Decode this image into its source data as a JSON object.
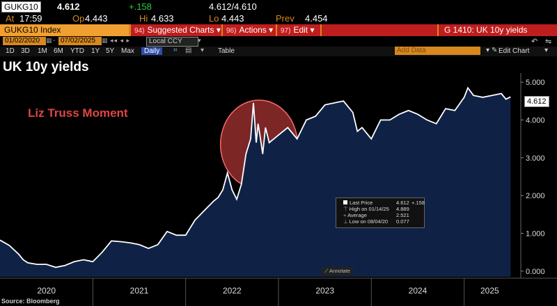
{
  "quote": {
    "ticker": "GUKG10",
    "last": "4.612",
    "change": "+.158",
    "bid_ask": "4.612/4.610",
    "time_label": "At",
    "time": "17:59",
    "open_label": "Op",
    "open": "4.443",
    "high_label": "Hi",
    "high": "4.633",
    "low_label": "Lo",
    "low": "4.443",
    "prev_label": "Prev",
    "prev": "4.454"
  },
  "menu": {
    "index": "GUKG10 Index",
    "suggested_num": "94)",
    "suggested": "Suggested Charts",
    "actions_num": "96)",
    "actions": "Actions",
    "edit_num": "97)",
    "edit": "Edit",
    "title": "G 1410: UK 10y yields"
  },
  "dates": {
    "start": "01/02/2020",
    "end": "07/02/2025",
    "currency": "Local CCY",
    "add_data": "Add Data"
  },
  "periods": [
    "1D",
    "3D",
    "1M",
    "6M",
    "YTD",
    "1Y",
    "5Y",
    "Max"
  ],
  "frequency": "Daily",
  "table_label": "Table",
  "edit_chart": "Edit Chart",
  "footer": "Source: Bloomberg",
  "annotate_label": "Annotate",
  "legend": {
    "last_label": "Last Price",
    "last_value": "4.612",
    "last_change": "+.158",
    "high_label": "High on 01/14/25",
    "high_value": "4.889",
    "avg_label": "Average",
    "avg_value": "2.521",
    "low_label": "Low on 08/04/20",
    "low_value": "0.077"
  },
  "colors": {
    "line": "#ffffff",
    "area": "#0f2246",
    "annotation": "#e04545",
    "bar_orange": "#d7881f",
    "bar_red": "#bf1e1e"
  },
  "chart_data": {
    "type": "area",
    "title": "UK 10y yields",
    "annotation": "Liz Truss Moment",
    "x": [
      2020.0,
      2020.1,
      2020.2,
      2020.25,
      2020.3,
      2020.4,
      2020.5,
      2020.6,
      2020.7,
      2020.8,
      2020.9,
      2021.0,
      2021.1,
      2021.2,
      2021.3,
      2021.4,
      2021.5,
      2021.6,
      2021.7,
      2021.8,
      2021.9,
      2022.0,
      2022.1,
      2022.2,
      2022.3,
      2022.35,
      2022.4,
      2022.45,
      2022.5,
      2022.55,
      2022.6,
      2022.65,
      2022.7,
      2022.73,
      2022.76,
      2022.78,
      2022.8,
      2022.83,
      2022.86,
      2022.9,
      2022.95,
      2023.0,
      2023.1,
      2023.2,
      2023.3,
      2023.4,
      2023.5,
      2023.6,
      2023.7,
      2023.8,
      2023.85,
      2023.9,
      2024.0,
      2024.1,
      2024.2,
      2024.3,
      2024.4,
      2024.5,
      2024.6,
      2024.7,
      2024.8,
      2024.9,
      2025.0,
      2025.04,
      2025.1,
      2025.2,
      2025.3,
      2025.4,
      2025.45,
      2025.5
    ],
    "values": [
      0.82,
      0.68,
      0.45,
      0.3,
      0.22,
      0.18,
      0.18,
      0.1,
      0.15,
      0.25,
      0.3,
      0.25,
      0.5,
      0.8,
      0.78,
      0.75,
      0.7,
      0.6,
      0.7,
      1.05,
      0.95,
      0.95,
      1.35,
      1.6,
      1.85,
      1.95,
      2.15,
      2.6,
      2.15,
      1.9,
      2.3,
      3.1,
      3.5,
      4.45,
      3.4,
      3.9,
      3.6,
      3.1,
      3.8,
      3.4,
      3.5,
      3.6,
      3.8,
      3.5,
      4.0,
      4.1,
      4.4,
      4.45,
      4.5,
      4.2,
      3.7,
      3.8,
      3.5,
      4.0,
      4.0,
      4.15,
      4.25,
      4.15,
      4.0,
      3.9,
      4.3,
      4.25,
      4.6,
      4.85,
      4.65,
      4.6,
      4.65,
      4.7,
      4.55,
      4.61
    ],
    "xticks": [
      "2020",
      "2021",
      "2022",
      "2023",
      "2024",
      "2025"
    ],
    "yticks": [
      "0.000",
      "1.000",
      "2.000",
      "3.000",
      "4.000",
      "5.000"
    ],
    "xlim": [
      2020.0,
      2025.55
    ],
    "ylim": [
      -0.15,
      5.15
    ],
    "highlight_range": [
      2022.6,
      2022.98
    ],
    "last_value": "4.612"
  }
}
